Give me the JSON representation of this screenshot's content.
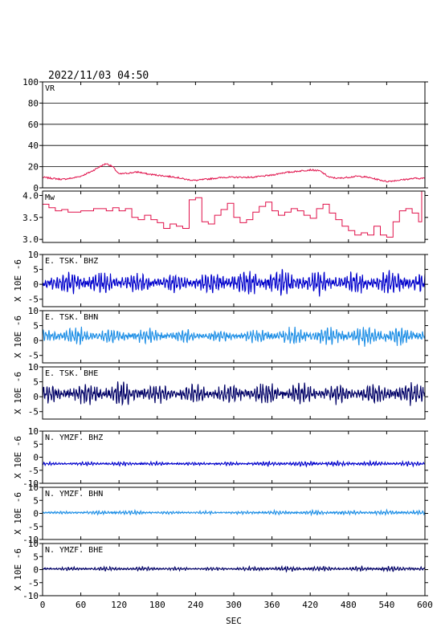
{
  "header": {
    "title": "2022/11/03 04:50"
  },
  "xaxis": {
    "label": "SEC",
    "ticks": [
      0,
      60,
      120,
      180,
      240,
      300,
      360,
      420,
      480,
      540,
      600
    ],
    "range": [
      0,
      600
    ]
  },
  "colors": {
    "vr": "#e0104a",
    "mw": "#e0104a",
    "bhz": "#0000cc",
    "bhn": "#1e8fe6",
    "bhe": "#000066",
    "axis": "#000000",
    "grid": "#000000"
  },
  "chart_data": [
    {
      "type": "line",
      "id": "vr",
      "label": "VR",
      "color": "#e0104a",
      "ylim": [
        0,
        100
      ],
      "yticks": [
        0,
        20,
        40,
        60,
        80,
        100
      ],
      "grid": true,
      "x": [
        0,
        15,
        30,
        45,
        60,
        75,
        90,
        100,
        110,
        120,
        135,
        150,
        165,
        180,
        195,
        210,
        225,
        240,
        255,
        270,
        285,
        300,
        315,
        330,
        345,
        360,
        375,
        390,
        405,
        420,
        435,
        450,
        465,
        480,
        495,
        510,
        525,
        540,
        555,
        570,
        585,
        600
      ],
      "values": [
        10,
        9,
        8,
        9,
        11,
        15,
        20,
        23,
        20,
        13,
        14,
        15,
        13,
        12,
        11,
        10,
        8,
        7,
        8,
        9,
        10,
        10,
        10,
        10,
        11,
        12,
        14,
        15,
        16,
        17,
        16,
        10,
        9,
        10,
        11,
        10,
        8,
        6,
        7,
        8,
        9,
        9
      ]
    },
    {
      "type": "line",
      "id": "mw",
      "label": "Mw",
      "color": "#e0104a",
      "ylim": [
        2.93,
        4.1
      ],
      "yticks": [
        3.0,
        3.5,
        4.0
      ],
      "grid": false,
      "x": [
        0,
        10,
        20,
        30,
        40,
        60,
        80,
        100,
        110,
        120,
        130,
        140,
        150,
        160,
        170,
        180,
        190,
        200,
        210,
        220,
        230,
        240,
        250,
        260,
        270,
        280,
        290,
        300,
        310,
        320,
        330,
        340,
        350,
        360,
        370,
        380,
        390,
        400,
        410,
        420,
        430,
        440,
        450,
        460,
        470,
        480,
        490,
        500,
        510,
        520,
        530,
        540,
        550,
        560,
        570,
        580,
        590,
        595,
        600
      ],
      "values": [
        3.8,
        3.72,
        3.65,
        3.68,
        3.62,
        3.65,
        3.7,
        3.65,
        3.72,
        3.65,
        3.7,
        3.5,
        3.45,
        3.55,
        3.45,
        3.38,
        3.25,
        3.35,
        3.3,
        3.25,
        3.9,
        3.95,
        3.4,
        3.35,
        3.55,
        3.68,
        3.82,
        3.5,
        3.38,
        3.45,
        3.62,
        3.75,
        3.85,
        3.65,
        3.55,
        3.62,
        3.7,
        3.65,
        3.55,
        3.48,
        3.7,
        3.8,
        3.6,
        3.45,
        3.3,
        3.2,
        3.1,
        3.15,
        3.1,
        3.3,
        3.1,
        3.05,
        3.4,
        3.65,
        3.7,
        3.6,
        3.4,
        4.1,
        3.5
      ]
    },
    {
      "type": "line",
      "id": "tsk-bhz",
      "label": "E. TSK. BHZ",
      "color": "#0000cc",
      "ylim": [
        -7.5,
        10
      ],
      "yticks": [
        -5,
        0,
        5,
        10
      ],
      "ylabel": "X 10E -6",
      "x": [
        0,
        60,
        120,
        180,
        240,
        300,
        360,
        420,
        480,
        540,
        600
      ],
      "amplitude": [
        3.5,
        4,
        3.5,
        3,
        3.5,
        4,
        4.5,
        4,
        3.5,
        4,
        4
      ],
      "baseline": 0.5
    },
    {
      "type": "line",
      "id": "tsk-bhn",
      "label": "E. TSK. BHN",
      "color": "#1e8fe6",
      "ylim": [
        -7.5,
        10
      ],
      "yticks": [
        -5,
        0,
        5,
        10
      ],
      "ylabel": "X 10E -6",
      "x": [
        0,
        60,
        120,
        180,
        240,
        300,
        360,
        420,
        480,
        540,
        600
      ],
      "amplitude": [
        2.5,
        3,
        2.5,
        2.5,
        2,
        2,
        2.5,
        3,
        3,
        3.5,
        2.5
      ],
      "baseline": 1.5
    },
    {
      "type": "line",
      "id": "tsk-bhe",
      "label": "E. TSK. BHE",
      "color": "#000066",
      "ylim": [
        -7.5,
        10
      ],
      "yticks": [
        -5,
        0,
        5,
        10
      ],
      "ylabel": "X 10E -6",
      "x": [
        0,
        60,
        120,
        180,
        240,
        300,
        360,
        420,
        480,
        540,
        600
      ],
      "amplitude": [
        3,
        3.5,
        4,
        3,
        3,
        3.5,
        4,
        3.5,
        3,
        3.5,
        4
      ],
      "baseline": 1.0
    },
    {
      "type": "line",
      "id": "ymzf-bhz",
      "label": "N. YMZF. BHZ",
      "color": "#0000cc",
      "ylim": [
        -10,
        10
      ],
      "yticks": [
        -10,
        -5,
        0,
        5,
        10
      ],
      "ylabel": "X 10E -6",
      "x": [
        0,
        60,
        120,
        180,
        240,
        300,
        360,
        420,
        480,
        540,
        600
      ],
      "amplitude": [
        0.6,
        0.7,
        0.8,
        0.7,
        0.6,
        0.7,
        0.9,
        1.0,
        0.8,
        0.9,
        0.8
      ],
      "baseline": -2.5
    },
    {
      "type": "line",
      "id": "ymzf-bhn",
      "label": "N. YMZF. BHN",
      "color": "#1e8fe6",
      "ylim": [
        -10,
        10
      ],
      "yticks": [
        -10,
        -5,
        0,
        5,
        10
      ],
      "ylabel": "X 10E -6",
      "x": [
        0,
        60,
        120,
        180,
        240,
        300,
        360,
        420,
        480,
        540,
        600
      ],
      "amplitude": [
        0.5,
        0.6,
        0.9,
        0.6,
        0.6,
        0.6,
        0.8,
        0.9,
        0.8,
        0.9,
        0.8
      ],
      "baseline": 0.3
    },
    {
      "type": "line",
      "id": "ymzf-bhe",
      "label": "N. YMZF. BHE",
      "color": "#000066",
      "ylim": [
        -10,
        10
      ],
      "yticks": [
        -10,
        -5,
        0,
        5,
        10
      ],
      "ylabel": "X 10E -6",
      "x": [
        0,
        60,
        120,
        180,
        240,
        300,
        360,
        420,
        480,
        540,
        600
      ],
      "amplitude": [
        0.6,
        0.7,
        0.8,
        0.7,
        0.6,
        0.7,
        0.9,
        1.0,
        0.8,
        1.1,
        0.9
      ],
      "baseline": 0.3
    }
  ]
}
